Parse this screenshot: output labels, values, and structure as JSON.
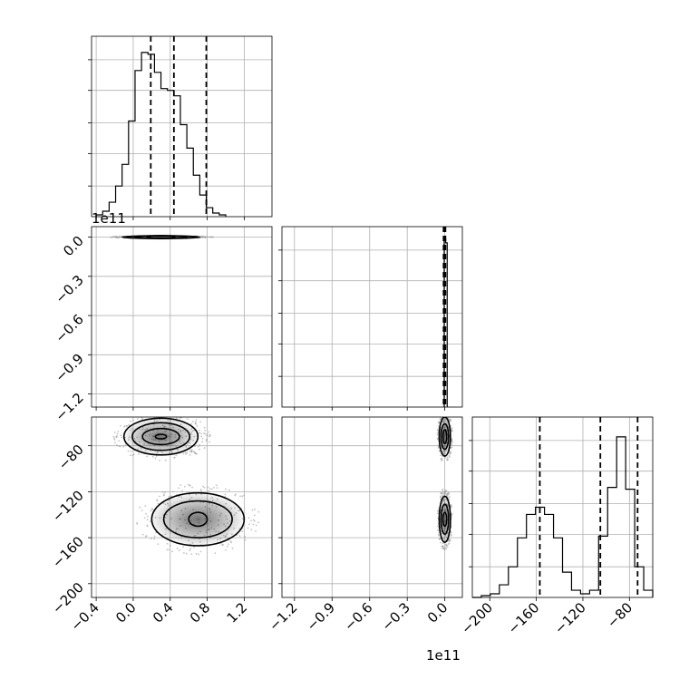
{
  "chart_data": {
    "type": "corner",
    "grid": true,
    "offset_labels": [
      "1e11",
      "1e11"
    ],
    "panels": [
      {
        "id": "hist-param0",
        "type": "histogram",
        "xlim": [
          -0.45,
          1.5
        ],
        "ylim": [
          0,
          1.0
        ],
        "bins_start": -0.4,
        "bin_width": 0.07,
        "counts": [
          0.01,
          0.03,
          0.08,
          0.17,
          0.29,
          0.53,
          0.81,
          0.91,
          0.9,
          0.8,
          0.71,
          0.7,
          0.67,
          0.51,
          0.38,
          0.23,
          0.12,
          0.05,
          0.02,
          0.01
        ],
        "quantiles": [
          0.19,
          0.44,
          0.79
        ]
      },
      {
        "id": "hist-param1",
        "type": "histogram",
        "xlim": [
          -1.3,
          0.14
        ],
        "ylim": [
          0,
          1.0
        ],
        "bins_start": -0.005,
        "bin_width": 0.012,
        "counts": [
          0.93,
          0.91
        ],
        "quantiles": [
          -0.01,
          0.0,
          0.005
        ]
      },
      {
        "id": "hist-param2",
        "type": "histogram",
        "xlim": [
          -215,
          -60
        ],
        "ylim": [
          0,
          1.0
        ],
        "bins_start": -215,
        "bin_width": 7.75,
        "counts": [
          0.0,
          0.01,
          0.02,
          0.07,
          0.17,
          0.33,
          0.46,
          0.5,
          0.46,
          0.33,
          0.14,
          0.04,
          0.02,
          0.04,
          0.34,
          0.61,
          0.89,
          0.6,
          0.17,
          0.04
        ],
        "quantiles": [
          -157,
          -105,
          -73
        ]
      },
      {
        "id": "scatter-param0-param1",
        "type": "density",
        "xlim": [
          -0.45,
          1.5
        ],
        "ylim": [
          -1.3,
          0.08
        ],
        "blobs": [
          {
            "cx": 0.3,
            "cy": 0.0,
            "levels": [
              {
                "rx": 0.42,
                "ry": 0.008
              },
              {
                "rx": 0.28,
                "ry": 0.006
              },
              {
                "rx": 0.15,
                "ry": 0.004
              }
            ]
          }
        ],
        "points_spread": {
          "x": [
            -0.35,
            1.2
          ],
          "y": [
            0.0,
            0.0
          ]
        }
      },
      {
        "id": "scatter-param0-param2",
        "type": "density",
        "xlim": [
          -0.45,
          1.5
        ],
        "ylim": [
          -212,
          -55
        ],
        "blobs": [
          {
            "cx": 0.3,
            "cy": -72,
            "levels": [
              {
                "rx": 0.4,
                "ry": 16
              },
              {
                "rx": 0.31,
                "ry": 12
              },
              {
                "rx": 0.2,
                "ry": 7
              },
              {
                "rx": 0.06,
                "ry": 2
              }
            ]
          },
          {
            "cx": 0.7,
            "cy": -144,
            "levels": [
              {
                "rx": 0.5,
                "ry": 23
              },
              {
                "rx": 0.37,
                "ry": 16
              },
              {
                "rx": 0.1,
                "ry": 6
              }
            ]
          }
        ]
      },
      {
        "id": "scatter-param1-param2",
        "type": "density",
        "xlim": [
          -1.3,
          0.14
        ],
        "ylim": [
          -212,
          -55
        ],
        "blobs": [
          {
            "cx": 0.0,
            "cy": -72,
            "levels": [
              {
                "rx": 0.045,
                "ry": 17
              },
              {
                "rx": 0.03,
                "ry": 11
              },
              {
                "rx": 0.015,
                "ry": 6
              }
            ]
          },
          {
            "cx": 0.0,
            "cy": -144,
            "levels": [
              {
                "rx": 0.045,
                "ry": 20
              },
              {
                "rx": 0.03,
                "ry": 13
              },
              {
                "rx": 0.015,
                "ry": 6
              }
            ]
          }
        ]
      }
    ],
    "tick_labels": {
      "x_param0": [
        "−0.4",
        "0.0",
        "0.4",
        "0.8",
        "1.2"
      ],
      "x_param1": [
        "−1.2",
        "−0.9",
        "−0.6",
        "−0.3",
        "0.0"
      ],
      "x_param2": [
        "−200",
        "−160",
        "−120",
        "−80"
      ],
      "y_param1": [
        "0.0",
        "−0.3",
        "−0.6",
        "−0.9",
        "−1.2"
      ],
      "y_param2": [
        "−80",
        "−120",
        "−160",
        "−200"
      ]
    },
    "tick_values": {
      "x_param0": [
        -0.4,
        0.0,
        0.4,
        0.8,
        1.2
      ],
      "x_param1": [
        -1.2,
        -0.9,
        -0.6,
        -0.3,
        0.0
      ],
      "x_param2": [
        -200,
        -160,
        -120,
        -80
      ],
      "y_param1": [
        0.0,
        -0.3,
        -0.6,
        -0.9,
        -1.2
      ],
      "y_param2": [
        -80,
        -120,
        -160,
        -200
      ]
    }
  }
}
